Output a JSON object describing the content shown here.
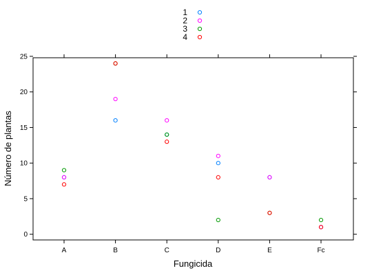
{
  "chart_data": {
    "type": "scatter",
    "xlabel": "Fungicida",
    "ylabel": "Número de plantas",
    "categories": [
      "A",
      "B",
      "C",
      "D",
      "E",
      "Fc"
    ],
    "yticks": [
      0,
      5,
      10,
      15,
      20,
      25
    ],
    "ylim": [
      -0.8,
      24.8
    ],
    "grid": false,
    "legend_position": "top-center",
    "series": [
      {
        "name": "1",
        "color": "#0080ff",
        "values": [
          8,
          16,
          14,
          10,
          8,
          1
        ]
      },
      {
        "name": "2",
        "color": "#ff00ff",
        "values": [
          8,
          19,
          16,
          11,
          8,
          1
        ]
      },
      {
        "name": "3",
        "color": "#009900",
        "values": [
          9,
          24,
          14,
          2,
          3,
          2
        ]
      },
      {
        "name": "4",
        "color": "#ff0000",
        "values": [
          7,
          24,
          13,
          8,
          3,
          1
        ]
      }
    ]
  }
}
